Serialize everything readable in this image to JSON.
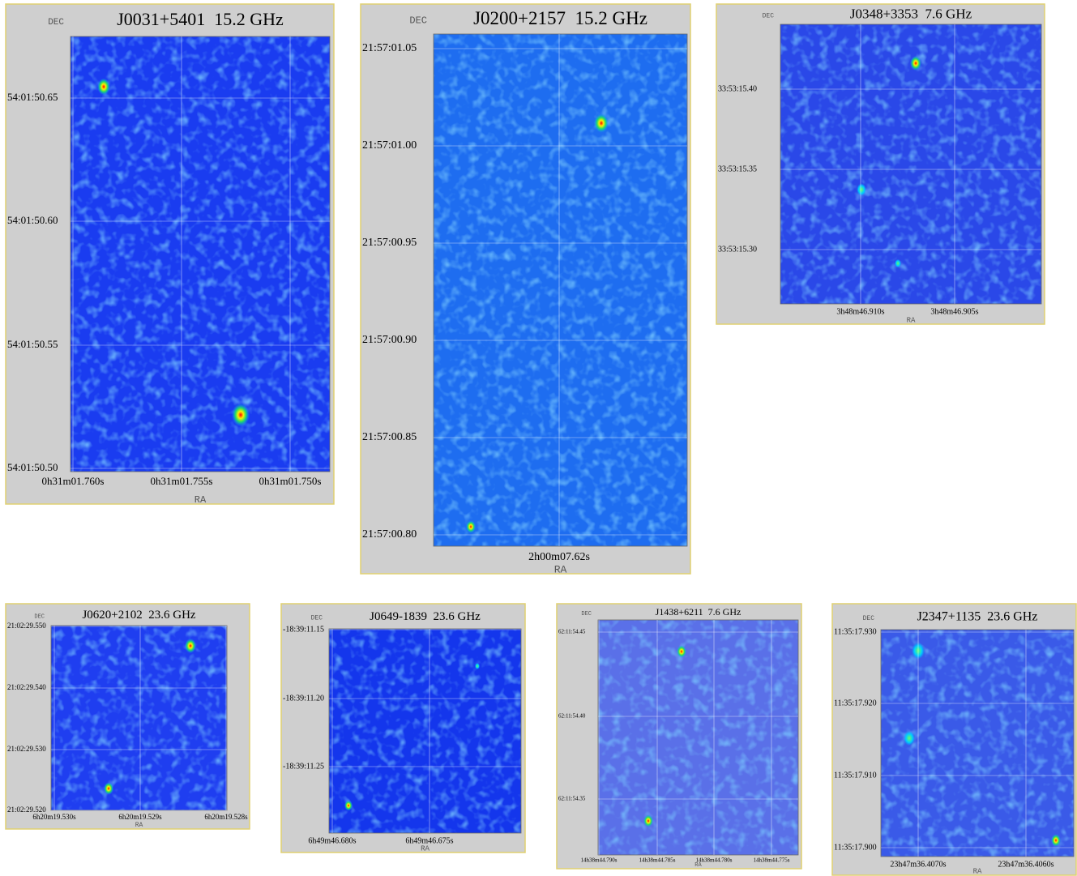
{
  "panels": [
    {
      "title": "J0031+5401  15.2 GHz",
      "ylabel": "DEC",
      "xlabel": "RA",
      "yticks": [
        "54:01:50.65",
        "54:01:50.60",
        "54:01:50.55",
        "54:01:50.50"
      ],
      "xticks": [
        "0h31m01.760s",
        "0h31m01.755s",
        "0h31m01.750s"
      ]
    },
    {
      "title": "J0200+2157  15.2 GHz",
      "ylabel": "DEC",
      "xlabel": "RA",
      "yticks": [
        "21:57:01.05",
        "21:57:01.00",
        "21:57:00.95",
        "21:57:00.90",
        "21:57:00.85",
        "21:57:00.80"
      ],
      "xticks": [
        "2h00m07.62s"
      ]
    },
    {
      "title": "J0348+3353  7.6 GHz",
      "ylabel": "DEC",
      "xlabel": "RA",
      "yticks": [
        "33:53:15.40",
        "33:53:15.35",
        "33:53:15.30"
      ],
      "xticks": [
        "3h48m46.910s",
        "3h48m46.905s"
      ]
    },
    {
      "title": "J0620+2102  23.6 GHz",
      "ylabel": "DEC",
      "xlabel": "RA",
      "yticks": [
        "21:02:29.550",
        "21:02:29.540",
        "21:02:29.530",
        "21:02:29.520"
      ],
      "xticks": [
        "6h20m19.530s",
        "6h20m19.529s",
        "6h20m19.528s"
      ]
    },
    {
      "title": "J0649-1839  23.6 GHz",
      "ylabel": "DEC",
      "xlabel": "RA",
      "yticks": [
        "-18:39:11.15",
        "-18:39:11.20",
        "-18:39:11.25"
      ],
      "xticks": [
        "6h49m46.680s",
        "6h49m46.675s"
      ]
    },
    {
      "title": "J1438+6211  7.6 GHz",
      "ylabel": "DEC",
      "xlabel": "RA",
      "yticks": [
        "62:11:54.45",
        "62:11:54.40",
        "62:11:54.35"
      ],
      "xticks": [
        "14h38m44.790s",
        "14h38m44.785s",
        "14h38m44.780s",
        "14h38m44.775s"
      ]
    },
    {
      "title": "J2347+1135  23.6 GHz",
      "ylabel": "DEC",
      "xlabel": "RA",
      "yticks": [
        "11:35:17.930",
        "11:35:17.920",
        "11:35:17.910",
        "11:35:17.900"
      ],
      "xticks": [
        "23h47m36.4070s",
        "23h47m36.4060s"
      ]
    }
  ]
}
